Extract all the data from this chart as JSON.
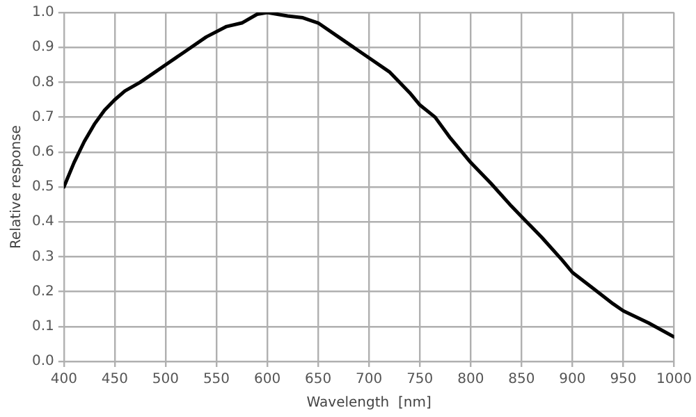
{
  "chart_data": {
    "type": "line",
    "xlabel": "Wavelength  [nm]",
    "ylabel": "Relative response",
    "x": [
      400,
      410,
      420,
      430,
      440,
      450,
      460,
      475,
      490,
      500,
      520,
      540,
      560,
      575,
      590,
      600,
      620,
      635,
      650,
      670,
      690,
      700,
      720,
      740,
      750,
      765,
      780,
      800,
      820,
      840,
      850,
      870,
      890,
      900,
      920,
      940,
      950,
      975,
      1000
    ],
    "series": [
      {
        "color": "#000000",
        "values": [
          0.5,
          0.57,
          0.63,
          0.68,
          0.72,
          0.75,
          0.775,
          0.8,
          0.83,
          0.85,
          0.89,
          0.93,
          0.96,
          0.97,
          0.995,
          1.0,
          0.99,
          0.985,
          0.97,
          0.93,
          0.89,
          0.87,
          0.83,
          0.77,
          0.735,
          0.7,
          0.64,
          0.57,
          0.51,
          0.445,
          0.415,
          0.355,
          0.29,
          0.255,
          0.21,
          0.165,
          0.145,
          0.11,
          0.07
        ]
      }
    ],
    "xlim": [
      400,
      1000
    ],
    "xticks": [
      400,
      450,
      500,
      550,
      600,
      650,
      700,
      750,
      800,
      850,
      900,
      950,
      1000
    ],
    "ylim": [
      0,
      1
    ],
    "yticks": [
      {
        "value": 0,
        "label": "0.0"
      },
      {
        "value": 0.1,
        "label": "0.1"
      },
      {
        "value": 0.2,
        "label": "0.2"
      },
      {
        "value": 0.3,
        "label": "0.3"
      },
      {
        "value": 0.4,
        "label": "0.4"
      },
      {
        "value": 0.5,
        "label": "0.5"
      },
      {
        "value": 0.6,
        "label": "0.6"
      },
      {
        "value": 0.7,
        "label": "0.7"
      },
      {
        "value": 0.8,
        "label": "0.8"
      },
      {
        "value": 0.9,
        "label": "0.9"
      },
      {
        "value": 1,
        "label": "1.0"
      }
    ],
    "grid": true,
    "legend": false,
    "marker": "none",
    "line_style": "solid"
  }
}
